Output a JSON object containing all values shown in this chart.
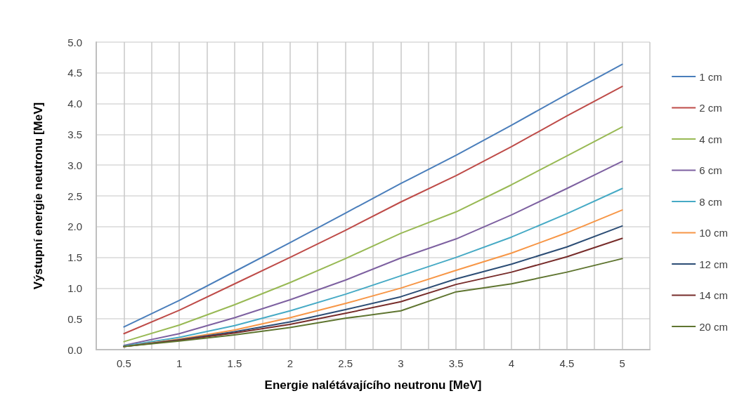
{
  "chart_data": {
    "type": "line",
    "xlabel": "Energie nalétávajícího neutronu [MeV]",
    "ylabel": "Výstupní energie neutronu [MeV]",
    "x": [
      0.5,
      1,
      1.5,
      2,
      2.5,
      3,
      3.5,
      4,
      4.5,
      5
    ],
    "xlim": [
      0.25,
      5.25
    ],
    "xticks": [
      {
        "value": 0.25,
        "label": null
      },
      0.5,
      {
        "value": 0.75,
        "label": null
      },
      1,
      {
        "value": 1.25,
        "label": null
      },
      1.5,
      {
        "value": 1.75,
        "label": null
      },
      2,
      {
        "value": 2.25,
        "label": null
      },
      2.5,
      {
        "value": 2.75,
        "label": null
      },
      3,
      {
        "value": 3.25,
        "label": null
      },
      3.5,
      {
        "value": 3.75,
        "label": null
      },
      4,
      {
        "value": 4.25,
        "label": null
      },
      4.5,
      {
        "value": 4.75,
        "label": null
      },
      5,
      {
        "value": 5.25,
        "label": null
      }
    ],
    "ylim": [
      0,
      5
    ],
    "yticks": [
      {
        "value": 0,
        "label": "0.0"
      },
      0.5,
      {
        "value": 1,
        "label": "1.0"
      },
      1.5,
      {
        "value": 2,
        "label": "2.0"
      },
      2.5,
      {
        "value": 3,
        "label": "3.0"
      },
      3.5,
      {
        "value": 4,
        "label": "4.0"
      },
      4.5,
      {
        "value": 5,
        "label": "5.0"
      }
    ],
    "grid": true,
    "legend": "right",
    "marker": "none",
    "line_style": "solid",
    "series": [
      {
        "name": "1 cm",
        "color": "#4a7ebb",
        "values": [
          0.37,
          0.8,
          1.27,
          1.74,
          2.22,
          2.7,
          3.16,
          3.65,
          4.15,
          4.64
        ]
      },
      {
        "name": "2 cm",
        "color": "#be4b48",
        "values": [
          0.26,
          0.64,
          1.07,
          1.5,
          1.94,
          2.4,
          2.83,
          3.3,
          3.8,
          4.28
        ]
      },
      {
        "name": "4 cm",
        "color": "#98b954",
        "values": [
          0.13,
          0.4,
          0.73,
          1.09,
          1.48,
          1.89,
          2.24,
          2.68,
          3.15,
          3.62
        ]
      },
      {
        "name": "6 cm",
        "color": "#7d60a0",
        "values": [
          0.07,
          0.26,
          0.52,
          0.81,
          1.13,
          1.49,
          1.8,
          2.19,
          2.62,
          3.06
        ]
      },
      {
        "name": "8 cm",
        "color": "#46aac5",
        "values": [
          0.06,
          0.2,
          0.39,
          0.63,
          0.9,
          1.2,
          1.5,
          1.83,
          2.21,
          2.62
        ]
      },
      {
        "name": "10 cm",
        "color": "#f79646",
        "values": [
          0.05,
          0.17,
          0.32,
          0.52,
          0.75,
          1.0,
          1.29,
          1.57,
          1.9,
          2.27
        ]
      },
      {
        "name": "12 cm",
        "color": "#2c4d75",
        "values": [
          0.05,
          0.16,
          0.29,
          0.45,
          0.65,
          0.86,
          1.15,
          1.39,
          1.67,
          2.01
        ]
      },
      {
        "name": "14 cm",
        "color": "#772c2a",
        "values": [
          0.05,
          0.15,
          0.27,
          0.41,
          0.59,
          0.78,
          1.06,
          1.26,
          1.51,
          1.81
        ]
      },
      {
        "name": "20 cm",
        "color": "#5f7530",
        "values": [
          0.05,
          0.14,
          0.24,
          0.36,
          0.51,
          0.63,
          0.94,
          1.07,
          1.26,
          1.48
        ]
      }
    ]
  }
}
